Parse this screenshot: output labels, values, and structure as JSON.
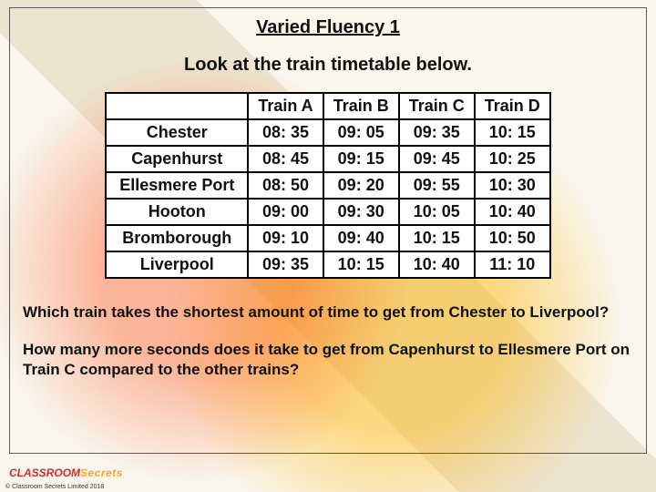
{
  "title": "Varied Fluency 1",
  "instruction": "Look at the train timetable below.",
  "table": {
    "columns": [
      "Train A",
      "Train B",
      "Train C",
      "Train D"
    ],
    "rows": [
      {
        "station": "Chester",
        "times": [
          "08: 35",
          "09: 05",
          "09: 35",
          "10: 15"
        ]
      },
      {
        "station": "Capenhurst",
        "times": [
          "08: 45",
          "09: 15",
          "09: 45",
          "10: 25"
        ]
      },
      {
        "station": "Ellesmere Port",
        "times": [
          "08: 50",
          "09: 20",
          "09: 55",
          "10: 30"
        ]
      },
      {
        "station": "Hooton",
        "times": [
          "09: 00",
          "09: 30",
          "10: 05",
          "10: 40"
        ]
      },
      {
        "station": "Bromborough",
        "times": [
          "09: 10",
          "09: 40",
          "10: 15",
          "10: 50"
        ]
      },
      {
        "station": "Liverpool",
        "times": [
          "09: 35",
          "10: 15",
          "10: 40",
          "11: 10"
        ]
      }
    ],
    "border_color": "#000000",
    "cell_bg": "#ffffff",
    "font_size": 18
  },
  "questions": {
    "q1": "Which train takes the shortest amount of time to get from Chester to Liverpool?",
    "q2": "How many more seconds does it take to get from Capenhurst to Ellesmere Port on Train C compared to the other trains?"
  },
  "logo": {
    "part1": "CLASSROOM",
    "part2": "Secrets"
  },
  "copyright": "© Classroom Secrets Limited 2018",
  "colors": {
    "text": "#111111",
    "frame_border": "#5a5a5a",
    "logo_red": "#d12b2b",
    "logo_orange": "#f5a623"
  }
}
